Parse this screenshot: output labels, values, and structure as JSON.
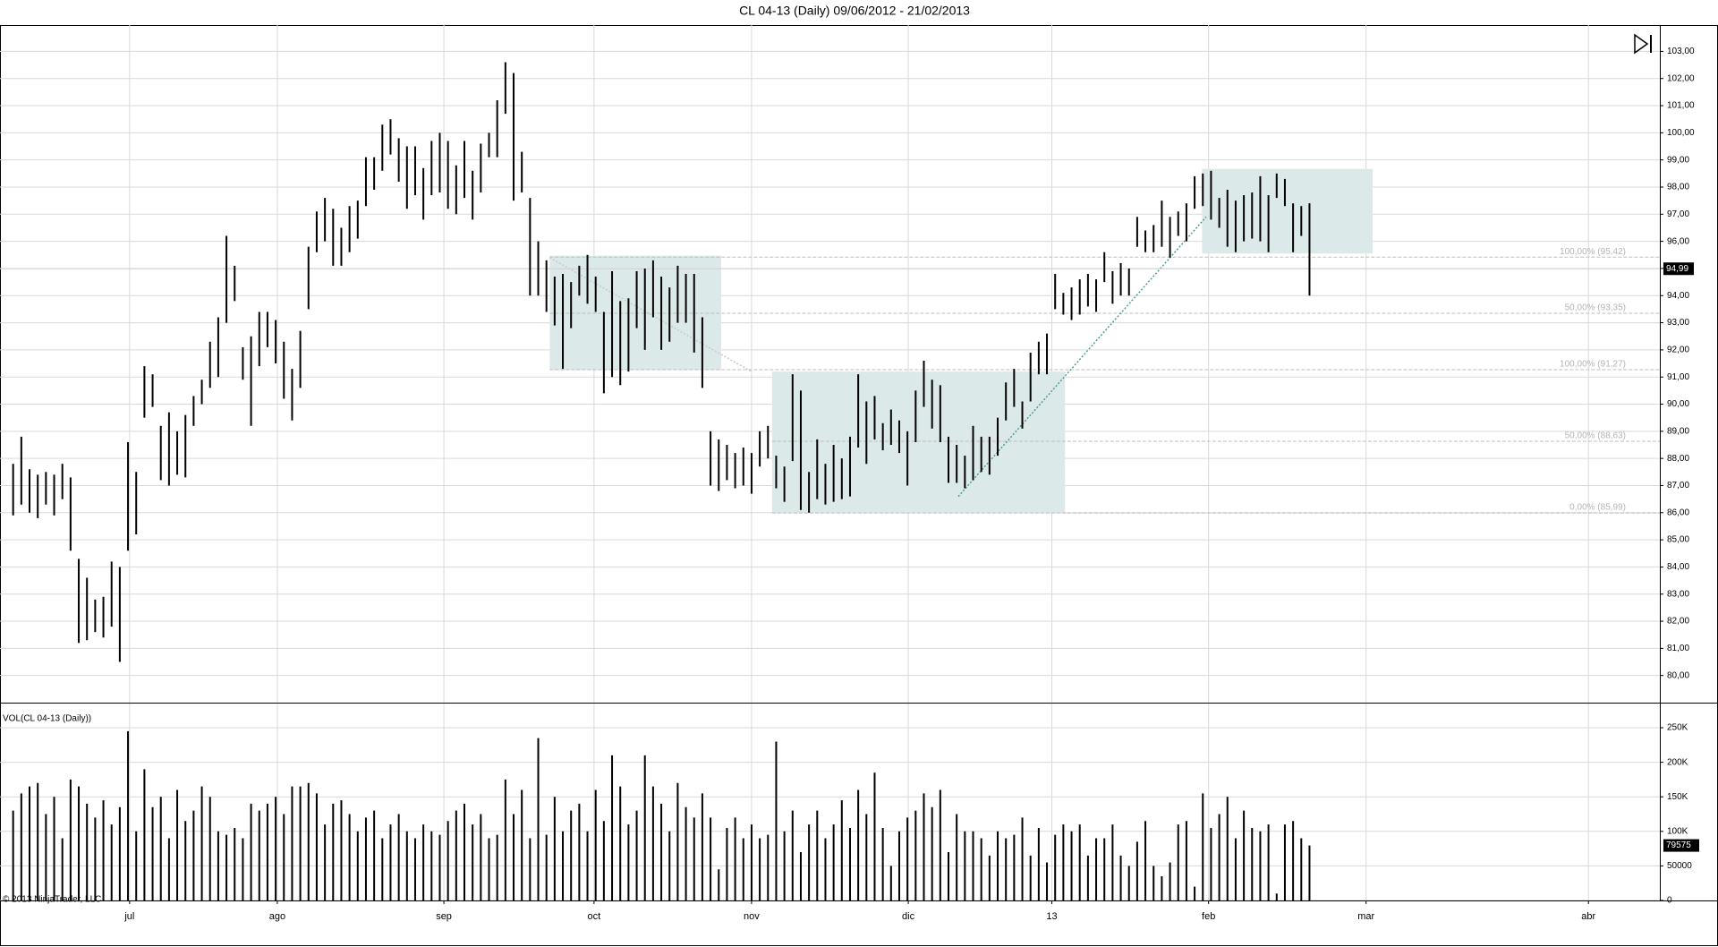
{
  "title": "CL 04-13 (Daily)  09/06/2012 - 21/02/2013",
  "copyright": "© 2013 NinjaTrader, LLC",
  "chart_data": [
    {
      "type": "range-bar",
      "xlim": [
        -1.6,
        200.7
      ],
      "ylim": [
        79.0,
        103.97
      ],
      "color": "#000000",
      "grid": true,
      "yticks": [
        {
          "value": 80,
          "label": "80,00"
        },
        {
          "value": 81,
          "label": "81,00"
        },
        {
          "value": 82,
          "label": "82,00"
        },
        {
          "value": 83,
          "label": "83,00"
        },
        {
          "value": 84,
          "label": "84,00"
        },
        {
          "value": 85,
          "label": "85,00"
        },
        {
          "value": 86,
          "label": "86,00"
        },
        {
          "value": 87,
          "label": "87,00"
        },
        {
          "value": 88,
          "label": "88,00"
        },
        {
          "value": 89,
          "label": "89,00"
        },
        {
          "value": 90,
          "label": "90,00"
        },
        {
          "value": 91,
          "label": "91,00"
        },
        {
          "value": 92,
          "label": "92,00"
        },
        {
          "value": 93,
          "label": "93,00"
        },
        {
          "value": 94,
          "label": "94,00"
        },
        {
          "value": 95,
          "label": "95,00"
        },
        {
          "value": 96,
          "label": "96,00"
        },
        {
          "value": 97,
          "label": "97,00"
        },
        {
          "value": 98,
          "label": "98,00"
        },
        {
          "value": 99,
          "label": "99,00"
        },
        {
          "value": 100,
          "label": "100,00"
        },
        {
          "value": 101,
          "label": "101,00"
        },
        {
          "value": 102,
          "label": "102,00"
        },
        {
          "value": 103,
          "label": "103,00"
        }
      ],
      "high": [
        87.8,
        88.8,
        87.6,
        87.4,
        87.5,
        87.4,
        87.8,
        87.3,
        84.3,
        83.6,
        82.8,
        82.9,
        84.2,
        84.0,
        88.6,
        87.5,
        91.4,
        91.1,
        89.2,
        89.7,
        89.0,
        89.6,
        90.3,
        90.9,
        92.3,
        93.2,
        96.2,
        95.1,
        92.1,
        92.5,
        93.4,
        93.4,
        93.1,
        92.3,
        91.3,
        92.7,
        95.8,
        97.1,
        97.6,
        97.2,
        96.5,
        97.3,
        97.5,
        99.1,
        99.1,
        100.3,
        100.5,
        99.8,
        99.5,
        99.5,
        98.7,
        99.7,
        100.0,
        99.7,
        98.8,
        99.7,
        98.6,
        99.6,
        100.0,
        101.2,
        102.6,
        102.2,
        99.3,
        97.6,
        96.0,
        95.3,
        94.7,
        94.8,
        94.5,
        95.1,
        95.5,
        94.7,
        93.4,
        94.9,
        93.8,
        93.9,
        94.9,
        95.0,
        95.3,
        94.7,
        94.3,
        95.1,
        94.8,
        94.8,
        93.2,
        89.0,
        88.7,
        88.5,
        88.2,
        88.4,
        88.2,
        89.0,
        89.2,
        88.1,
        87.7,
        91.1,
        90.5,
        87.5,
        88.7,
        87.8,
        88.5,
        88.0,
        88.8,
        91.1,
        90.1,
        90.3,
        89.3,
        89.8,
        89.4,
        89.0,
        90.5,
        91.6,
        90.9,
        90.7,
        88.8,
        88.5,
        88.1,
        89.2,
        88.8,
        88.8,
        89.5,
        90.8,
        91.3,
        90.1,
        91.9,
        92.3,
        92.6,
        94.8,
        94.1,
        94.3,
        94.6,
        94.8,
        94.6,
        95.6,
        94.9,
        95.2,
        95.0,
        96.9,
        96.4,
        96.6,
        97.5,
        96.9,
        97.1,
        97.4,
        98.4,
        98.5,
        98.6,
        97.6,
        97.9,
        97.5,
        97.7,
        97.8,
        98.4,
        97.7,
        98.5,
        98.3,
        97.4,
        97.3,
        97.4
      ],
      "low": [
        85.9,
        86.3,
        86.0,
        85.8,
        86.3,
        85.9,
        86.5,
        84.6,
        81.2,
        81.3,
        81.6,
        81.4,
        81.8,
        80.5,
        84.6,
        85.2,
        89.5,
        89.9,
        87.2,
        87.0,
        87.4,
        87.3,
        89.2,
        90.0,
        90.6,
        91.0,
        93.0,
        93.8,
        90.9,
        89.2,
        91.4,
        92.1,
        91.5,
        90.2,
        89.4,
        90.6,
        93.5,
        95.6,
        96.0,
        95.1,
        95.1,
        95.6,
        96.1,
        97.3,
        97.9,
        98.6,
        99.2,
        98.2,
        97.2,
        97.7,
        96.8,
        97.7,
        97.8,
        97.2,
        97.0,
        97.6,
        96.8,
        97.8,
        99.1,
        99.1,
        100.7,
        97.5,
        97.8,
        94.0,
        94.0,
        93.4,
        92.9,
        91.3,
        92.8,
        94.0,
        93.7,
        93.4,
        90.4,
        91.0,
        90.7,
        91.2,
        92.8,
        92.0,
        93.2,
        92.0,
        92.3,
        93.0,
        93.0,
        91.9,
        90.6,
        87.0,
        86.8,
        87.2,
        86.9,
        87.0,
        86.7,
        87.7,
        88.0,
        86.9,
        86.4,
        87.9,
        86.1,
        86.0,
        86.5,
        86.3,
        86.4,
        86.5,
        86.6,
        88.4,
        87.8,
        88.7,
        88.3,
        88.5,
        88.2,
        87.0,
        88.6,
        89.9,
        89.1,
        88.6,
        87.1,
        87.1,
        86.9,
        87.2,
        87.5,
        87.4,
        88.1,
        89.4,
        89.9,
        89.1,
        90.1,
        91.1,
        91.1,
        93.5,
        93.3,
        93.1,
        93.3,
        93.6,
        93.4,
        94.5,
        93.7,
        94.0,
        94.0,
        95.8,
        95.6,
        95.6,
        95.8,
        95.4,
        96.2,
        96.0,
        97.2,
        97.3,
        96.8,
        96.5,
        95.8,
        95.6,
        96.0,
        96.1,
        96.0,
        95.6,
        97.6,
        97.3,
        95.6,
        96.2,
        94.0
      ],
      "last_price": {
        "value": 94.99,
        "label": "94,99"
      },
      "zones": [
        {
          "x": [
            65.4,
            86.3
          ],
          "y": [
            91.26,
            95.47
          ]
        },
        {
          "x": [
            92.5,
            128.2
          ],
          "y": [
            86.0,
            91.2
          ]
        },
        {
          "x": [
            144.9,
            165.7
          ],
          "y": [
            95.55,
            98.67
          ]
        }
      ],
      "fib_levels": [
        {
          "value": 95.42,
          "label": "100,00% (95,42)",
          "start": 65.4
        },
        {
          "value": 93.35,
          "label": "50,00% (93,35)",
          "start": 65.4
        },
        {
          "value": 91.27,
          "label": "100,00% (91,27)",
          "start": 65.4
        },
        {
          "value": 88.63,
          "label": "50,00% (88,63)",
          "start": 92.5
        },
        {
          "value": 85.99,
          "label": "0,00% (85,99)",
          "start": 92.5
        }
      ],
      "trendlines": [
        {
          "x": [
            65.4,
            90.0
          ],
          "y": [
            95.4,
            91.2
          ]
        },
        {
          "x": [
            115.2,
            145.4
          ],
          "y": [
            86.6,
            96.9
          ]
        }
      ]
    },
    {
      "type": "bar",
      "title": "VOL(CL 04-13 (Daily))",
      "xlim": [
        -1.6,
        200.7
      ],
      "ylim": [
        0,
        285000
      ],
      "color": "#000000",
      "grid": true,
      "yticks": [
        0,
        50000,
        {
          "value": 100000,
          "label": "100K"
        },
        {
          "value": 150000,
          "label": "150K"
        },
        {
          "value": 200000,
          "label": "200K"
        },
        {
          "value": 250000,
          "label": "250K"
        }
      ],
      "xticks": [
        {
          "value": 14.2,
          "label": "jul"
        },
        {
          "value": 32.2,
          "label": "ago"
        },
        {
          "value": 52.5,
          "label": "sep"
        },
        {
          "value": 70.8,
          "label": "oct"
        },
        {
          "value": 90.0,
          "label": "nov"
        },
        {
          "value": 109.1,
          "label": "dic"
        },
        {
          "value": 126.6,
          "label": "13"
        },
        {
          "value": 145.7,
          "label": "feb"
        },
        {
          "value": 164.9,
          "label": "mar"
        },
        {
          "value": 192.0,
          "label": "abr"
        }
      ],
      "values": [
        130000,
        155000,
        165000,
        170000,
        125000,
        150000,
        90000,
        175000,
        165000,
        140000,
        120000,
        145000,
        110000,
        135000,
        245000,
        100000,
        190000,
        135000,
        150000,
        90000,
        160000,
        115000,
        130000,
        165000,
        150000,
        100000,
        95000,
        105000,
        90000,
        140000,
        130000,
        140000,
        150000,
        125000,
        165000,
        165000,
        170000,
        155000,
        110000,
        140000,
        145000,
        125000,
        100000,
        120000,
        130000,
        90000,
        110000,
        125000,
        100000,
        90000,
        110000,
        100000,
        95000,
        115000,
        130000,
        140000,
        110000,
        125000,
        90000,
        95000,
        175000,
        125000,
        160000,
        90000,
        235000,
        95000,
        150000,
        100000,
        130000,
        140000,
        100000,
        160000,
        115000,
        210000,
        165000,
        110000,
        130000,
        210000,
        165000,
        140000,
        100000,
        170000,
        135000,
        120000,
        155000,
        120000,
        45000,
        105000,
        120000,
        90000,
        110000,
        90000,
        95000,
        230000,
        100000,
        130000,
        70000,
        110000,
        130000,
        90000,
        110000,
        145000,
        105000,
        160000,
        125000,
        185000,
        105000,
        50000,
        100000,
        120000,
        130000,
        155000,
        135000,
        160000,
        70000,
        125000,
        100000,
        100000,
        90000,
        65000,
        100000,
        90000,
        95000,
        120000,
        65000,
        105000,
        55000,
        95000,
        110000,
        100000,
        110000,
        65000,
        90000,
        90000,
        110000,
        65000,
        50000,
        85000,
        115000,
        50000,
        35000,
        55000,
        110000,
        115000,
        20000,
        155000,
        105000,
        125000,
        150000,
        90000,
        130000,
        105000,
        100000,
        110000,
        10000,
        110000,
        115000,
        90000,
        79575
      ]
    }
  ]
}
